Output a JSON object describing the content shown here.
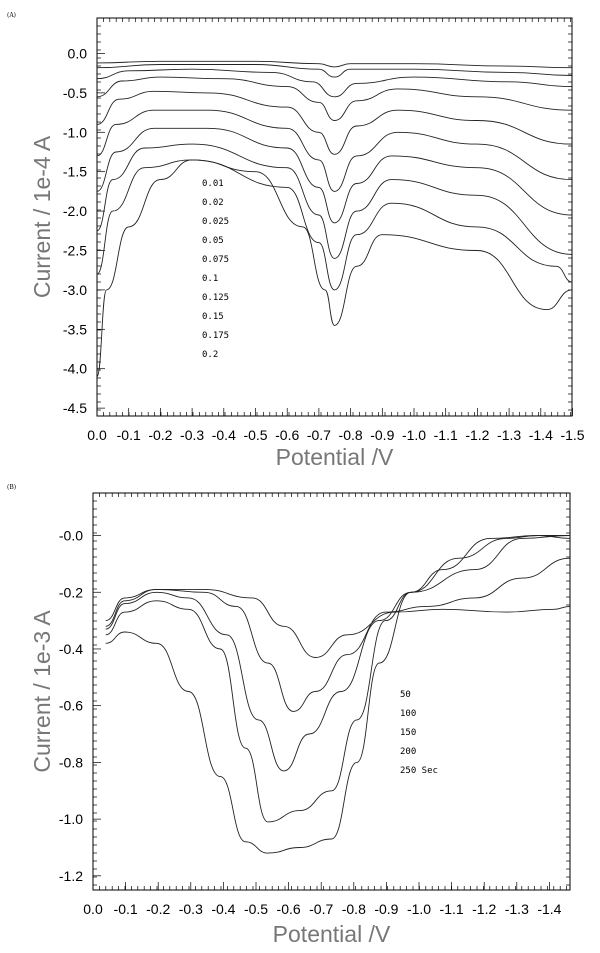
{
  "chart_data": [
    {
      "panel_label": "(A)",
      "type": "line",
      "xlabel": "Potential /V",
      "ylabel": "Current / 1e-4 A",
      "xlim": [
        0.0,
        1.5
      ],
      "ylim": [
        -4.6,
        0.45
      ],
      "x_reversed": false,
      "x_tick_labels": [
        "0.0",
        "-0.1",
        "-0.2",
        "-0.3",
        "-0.4",
        "-0.5",
        "-0.6",
        "-0.7",
        "-0.8",
        "-0.9",
        "-1.0",
        "-1.1",
        "-1.2",
        "-1.3",
        "-1.4",
        "-1.5"
      ],
      "y_ticks": [
        0.0,
        -0.5,
        -1.0,
        -1.5,
        -2.0,
        -2.5,
        -3.0,
        -3.5,
        -4.0,
        -4.5
      ],
      "y_tick_labels": [
        "0.0",
        "-0.5",
        "-1.0",
        "-1.5",
        "-2.0",
        "-2.5",
        "-3.0",
        "-3.5",
        "-4.0",
        "-4.5"
      ],
      "legend": [
        "0.01",
        "0.02",
        "0.025",
        "0.05",
        "0.075",
        "0.1",
        "0.125",
        "0.15",
        "0.175",
        "0.2"
      ],
      "series": [
        {
          "values": [
            [
              0.0,
              -0.12
            ],
            [
              0.2,
              -0.1
            ],
            [
              0.5,
              -0.1
            ],
            [
              0.7,
              -0.13
            ],
            [
              0.75,
              -0.17
            ],
            [
              0.8,
              -0.13
            ],
            [
              1.0,
              -0.13
            ],
            [
              1.3,
              -0.16
            ],
            [
              1.5,
              -0.18
            ]
          ]
        },
        {
          "values": [
            [
              0.0,
              -0.18
            ],
            [
              0.2,
              -0.14
            ],
            [
              0.5,
              -0.14
            ],
            [
              0.7,
              -0.2
            ],
            [
              0.75,
              -0.3
            ],
            [
              0.8,
              -0.2
            ],
            [
              1.0,
              -0.2
            ],
            [
              1.3,
              -0.24
            ],
            [
              1.5,
              -0.28
            ]
          ]
        },
        {
          "values": [
            [
              0.0,
              -0.32
            ],
            [
              0.1,
              -0.22
            ],
            [
              0.3,
              -0.2
            ],
            [
              0.55,
              -0.24
            ],
            [
              0.68,
              -0.36
            ],
            [
              0.75,
              -0.55
            ],
            [
              0.82,
              -0.38
            ],
            [
              1.0,
              -0.3
            ],
            [
              1.3,
              -0.36
            ],
            [
              1.5,
              -0.42
            ]
          ]
        },
        {
          "values": [
            [
              0.0,
              -0.55
            ],
            [
              0.08,
              -0.35
            ],
            [
              0.2,
              -0.3
            ],
            [
              0.4,
              -0.32
            ],
            [
              0.6,
              -0.42
            ],
            [
              0.7,
              -0.62
            ],
            [
              0.75,
              -0.85
            ],
            [
              0.82,
              -0.6
            ],
            [
              0.95,
              -0.45
            ],
            [
              1.2,
              -0.55
            ],
            [
              1.5,
              -0.72
            ]
          ]
        },
        {
          "values": [
            [
              0.0,
              -0.9
            ],
            [
              0.07,
              -0.58
            ],
            [
              0.18,
              -0.48
            ],
            [
              0.35,
              -0.5
            ],
            [
              0.6,
              -0.68
            ],
            [
              0.7,
              -1.0
            ],
            [
              0.75,
              -1.28
            ],
            [
              0.82,
              -0.92
            ],
            [
              0.95,
              -0.72
            ],
            [
              1.2,
              -0.85
            ],
            [
              1.5,
              -1.15
            ]
          ]
        },
        {
          "values": [
            [
              0.0,
              -1.3
            ],
            [
              0.06,
              -0.9
            ],
            [
              0.18,
              -0.72
            ],
            [
              0.35,
              -0.72
            ],
            [
              0.6,
              -0.95
            ],
            [
              0.7,
              -1.35
            ],
            [
              0.75,
              -1.75
            ],
            [
              0.82,
              -1.3
            ],
            [
              0.95,
              -1.0
            ],
            [
              1.2,
              -1.15
            ],
            [
              1.5,
              -1.6
            ]
          ]
        },
        {
          "values": [
            [
              0.0,
              -1.75
            ],
            [
              0.06,
              -1.25
            ],
            [
              0.18,
              -0.95
            ],
            [
              0.35,
              -0.95
            ],
            [
              0.6,
              -1.2
            ],
            [
              0.7,
              -1.7
            ],
            [
              0.75,
              -2.15
            ],
            [
              0.82,
              -1.65
            ],
            [
              0.93,
              -1.3
            ],
            [
              1.2,
              -1.45
            ],
            [
              1.5,
              -2.05
            ]
          ]
        },
        {
          "values": [
            [
              0.0,
              -2.25
            ],
            [
              0.05,
              -1.6
            ],
            [
              0.15,
              -1.2
            ],
            [
              0.3,
              -1.15
            ],
            [
              0.6,
              -1.45
            ],
            [
              0.7,
              -2.05
            ],
            [
              0.75,
              -2.6
            ],
            [
              0.82,
              -2.0
            ],
            [
              0.93,
              -1.6
            ],
            [
              1.2,
              -1.8
            ],
            [
              1.5,
              -2.55
            ]
          ]
        },
        {
          "values": [
            [
              0.0,
              -2.8
            ],
            [
              0.05,
              -2.0
            ],
            [
              0.15,
              -1.45
            ],
            [
              0.3,
              -1.35
            ],
            [
              0.6,
              -1.7
            ],
            [
              0.7,
              -2.4
            ],
            [
              0.75,
              -3.0
            ],
            [
              0.82,
              -2.3
            ],
            [
              0.93,
              -1.9
            ],
            [
              1.2,
              -2.2
            ],
            [
              1.45,
              -2.7
            ],
            [
              1.5,
              -2.9
            ]
          ]
        },
        {
          "values": [
            [
              0.0,
              -4.1
            ],
            [
              0.03,
              -3.0
            ],
            [
              0.1,
              -2.2
            ],
            [
              0.2,
              -1.6
            ],
            [
              0.3,
              -1.35
            ],
            [
              0.5,
              -1.5
            ],
            [
              0.65,
              -2.2
            ],
            [
              0.72,
              -3.0
            ],
            [
              0.75,
              -3.45
            ],
            [
              0.82,
              -2.7
            ],
            [
              0.9,
              -2.3
            ],
            [
              1.2,
              -2.5
            ],
            [
              1.42,
              -3.25
            ],
            [
              1.5,
              -3.0
            ]
          ]
        }
      ]
    },
    {
      "panel_label": "(B)",
      "type": "line",
      "xlabel": "Potential /V",
      "ylabel": "Current / 1e-3 A",
      "xlim": [
        0.0,
        1.5
      ],
      "ylim": [
        -1.25,
        0.15
      ],
      "x_reversed": false,
      "x_tick_labels": [
        "0.0",
        "-0.1",
        "-0.2",
        "-0.3",
        "-0.4",
        "-0.5",
        "-0.6",
        "-0.7",
        "-0.8",
        "-0.9",
        "-1.0",
        "-1.1",
        "-1.2",
        "-1.3",
        "-1.4"
      ],
      "y_ticks": [
        0.0,
        -0.2,
        -0.4,
        -0.6,
        -0.8,
        -1.0,
        -1.2
      ],
      "y_tick_labels": [
        "-0.0",
        "-0.2",
        "-0.4",
        "-0.6",
        "-0.8",
        "-1.0",
        "-1.2"
      ],
      "legend": [
        "50",
        "100",
        "150",
        "200",
        "250 Sec"
      ],
      "series": [
        {
          "values": [
            [
              0.04,
              -0.3
            ],
            [
              0.1,
              -0.22
            ],
            [
              0.2,
              -0.19
            ],
            [
              0.35,
              -0.19
            ],
            [
              0.5,
              -0.22
            ],
            [
              0.6,
              -0.32
            ],
            [
              0.7,
              -0.43
            ],
            [
              0.8,
              -0.35
            ],
            [
              0.95,
              -0.27
            ],
            [
              1.1,
              -0.26
            ],
            [
              1.3,
              -0.27
            ],
            [
              1.45,
              -0.26
            ],
            [
              1.5,
              -0.25
            ]
          ]
        },
        {
          "values": [
            [
              0.04,
              -0.32
            ],
            [
              0.1,
              -0.23
            ],
            [
              0.2,
              -0.19
            ],
            [
              0.35,
              -0.2
            ],
            [
              0.45,
              -0.25
            ],
            [
              0.55,
              -0.45
            ],
            [
              0.63,
              -0.62
            ],
            [
              0.7,
              -0.55
            ],
            [
              0.8,
              -0.42
            ],
            [
              0.92,
              -0.27
            ],
            [
              1.05,
              -0.25
            ],
            [
              1.2,
              -0.22
            ],
            [
              1.35,
              -0.15
            ],
            [
              1.5,
              -0.08
            ]
          ]
        },
        {
          "values": [
            [
              0.04,
              -0.33
            ],
            [
              0.1,
              -0.24
            ],
            [
              0.2,
              -0.2
            ],
            [
              0.3,
              -0.22
            ],
            [
              0.42,
              -0.35
            ],
            [
              0.52,
              -0.65
            ],
            [
              0.6,
              -0.83
            ],
            [
              0.68,
              -0.7
            ],
            [
              0.78,
              -0.55
            ],
            [
              0.9,
              -0.3
            ],
            [
              1.0,
              -0.2
            ],
            [
              1.2,
              -0.12
            ],
            [
              1.35,
              -0.01
            ],
            [
              1.5,
              0.0
            ]
          ]
        },
        {
          "values": [
            [
              0.04,
              -0.35
            ],
            [
              0.1,
              -0.27
            ],
            [
              0.2,
              -0.23
            ],
            [
              0.3,
              -0.26
            ],
            [
              0.4,
              -0.4
            ],
            [
              0.48,
              -0.75
            ],
            [
              0.55,
              -1.01
            ],
            [
              0.65,
              -0.97
            ],
            [
              0.75,
              -0.9
            ],
            [
              0.83,
              -0.65
            ],
            [
              0.92,
              -0.3
            ],
            [
              1.0,
              -0.2
            ],
            [
              1.15,
              -0.08
            ],
            [
              1.3,
              -0.01
            ],
            [
              1.4,
              0.0
            ],
            [
              1.5,
              -0.01
            ]
          ]
        },
        {
          "values": [
            [
              0.04,
              -0.38
            ],
            [
              0.1,
              -0.34
            ],
            [
              0.2,
              -0.38
            ],
            [
              0.3,
              -0.55
            ],
            [
              0.4,
              -0.85
            ],
            [
              0.48,
              -1.08
            ],
            [
              0.55,
              -1.12
            ],
            [
              0.65,
              -1.1
            ],
            [
              0.75,
              -1.07
            ],
            [
              0.83,
              -0.8
            ],
            [
              0.9,
              -0.45
            ],
            [
              1.0,
              -0.2
            ],
            [
              1.1,
              -0.12
            ],
            [
              1.25,
              -0.01
            ],
            [
              1.4,
              0.0
            ],
            [
              1.5,
              0.0
            ]
          ]
        }
      ]
    }
  ]
}
